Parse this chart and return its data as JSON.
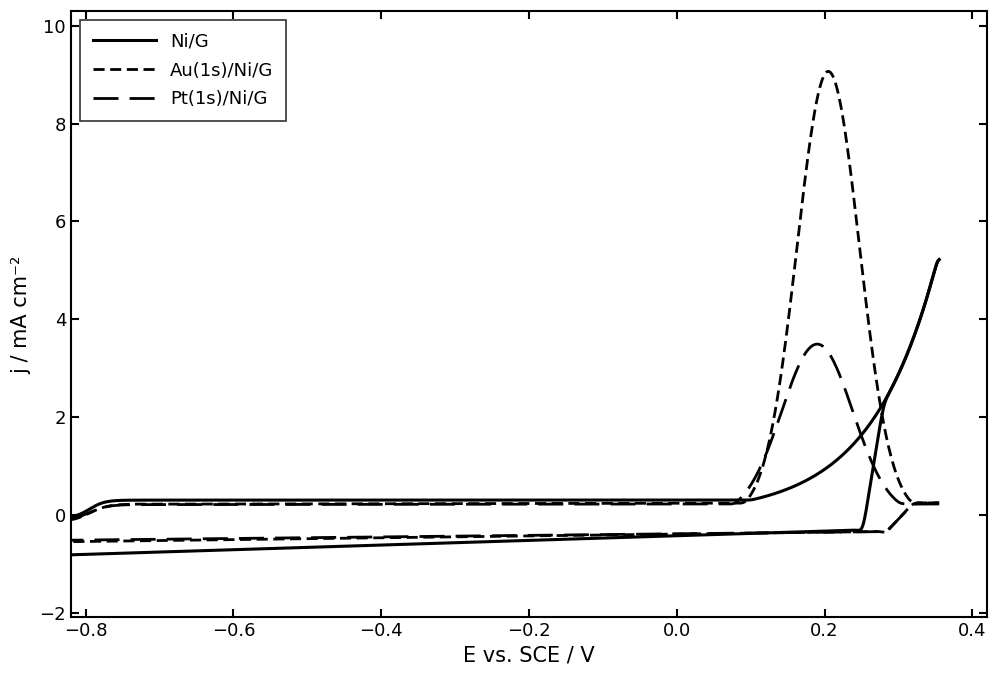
{
  "title": "",
  "xlabel": "E vs. SCE / V",
  "ylabel": "j / mA cm⁻²",
  "xlim": [
    -0.82,
    0.42
  ],
  "ylim": [
    -2.1,
    10.3
  ],
  "xticks": [
    -0.8,
    -0.6,
    -0.4,
    -0.2,
    0.0,
    0.2,
    0.4
  ],
  "yticks": [
    -2,
    0,
    2,
    4,
    6,
    8,
    10
  ],
  "background_color": "#ffffff",
  "line_color": "#000000",
  "legend_labels": [
    "Ni/G",
    "Au(1s)/Ni/G",
    "Pt(1s)/Ni/G"
  ]
}
